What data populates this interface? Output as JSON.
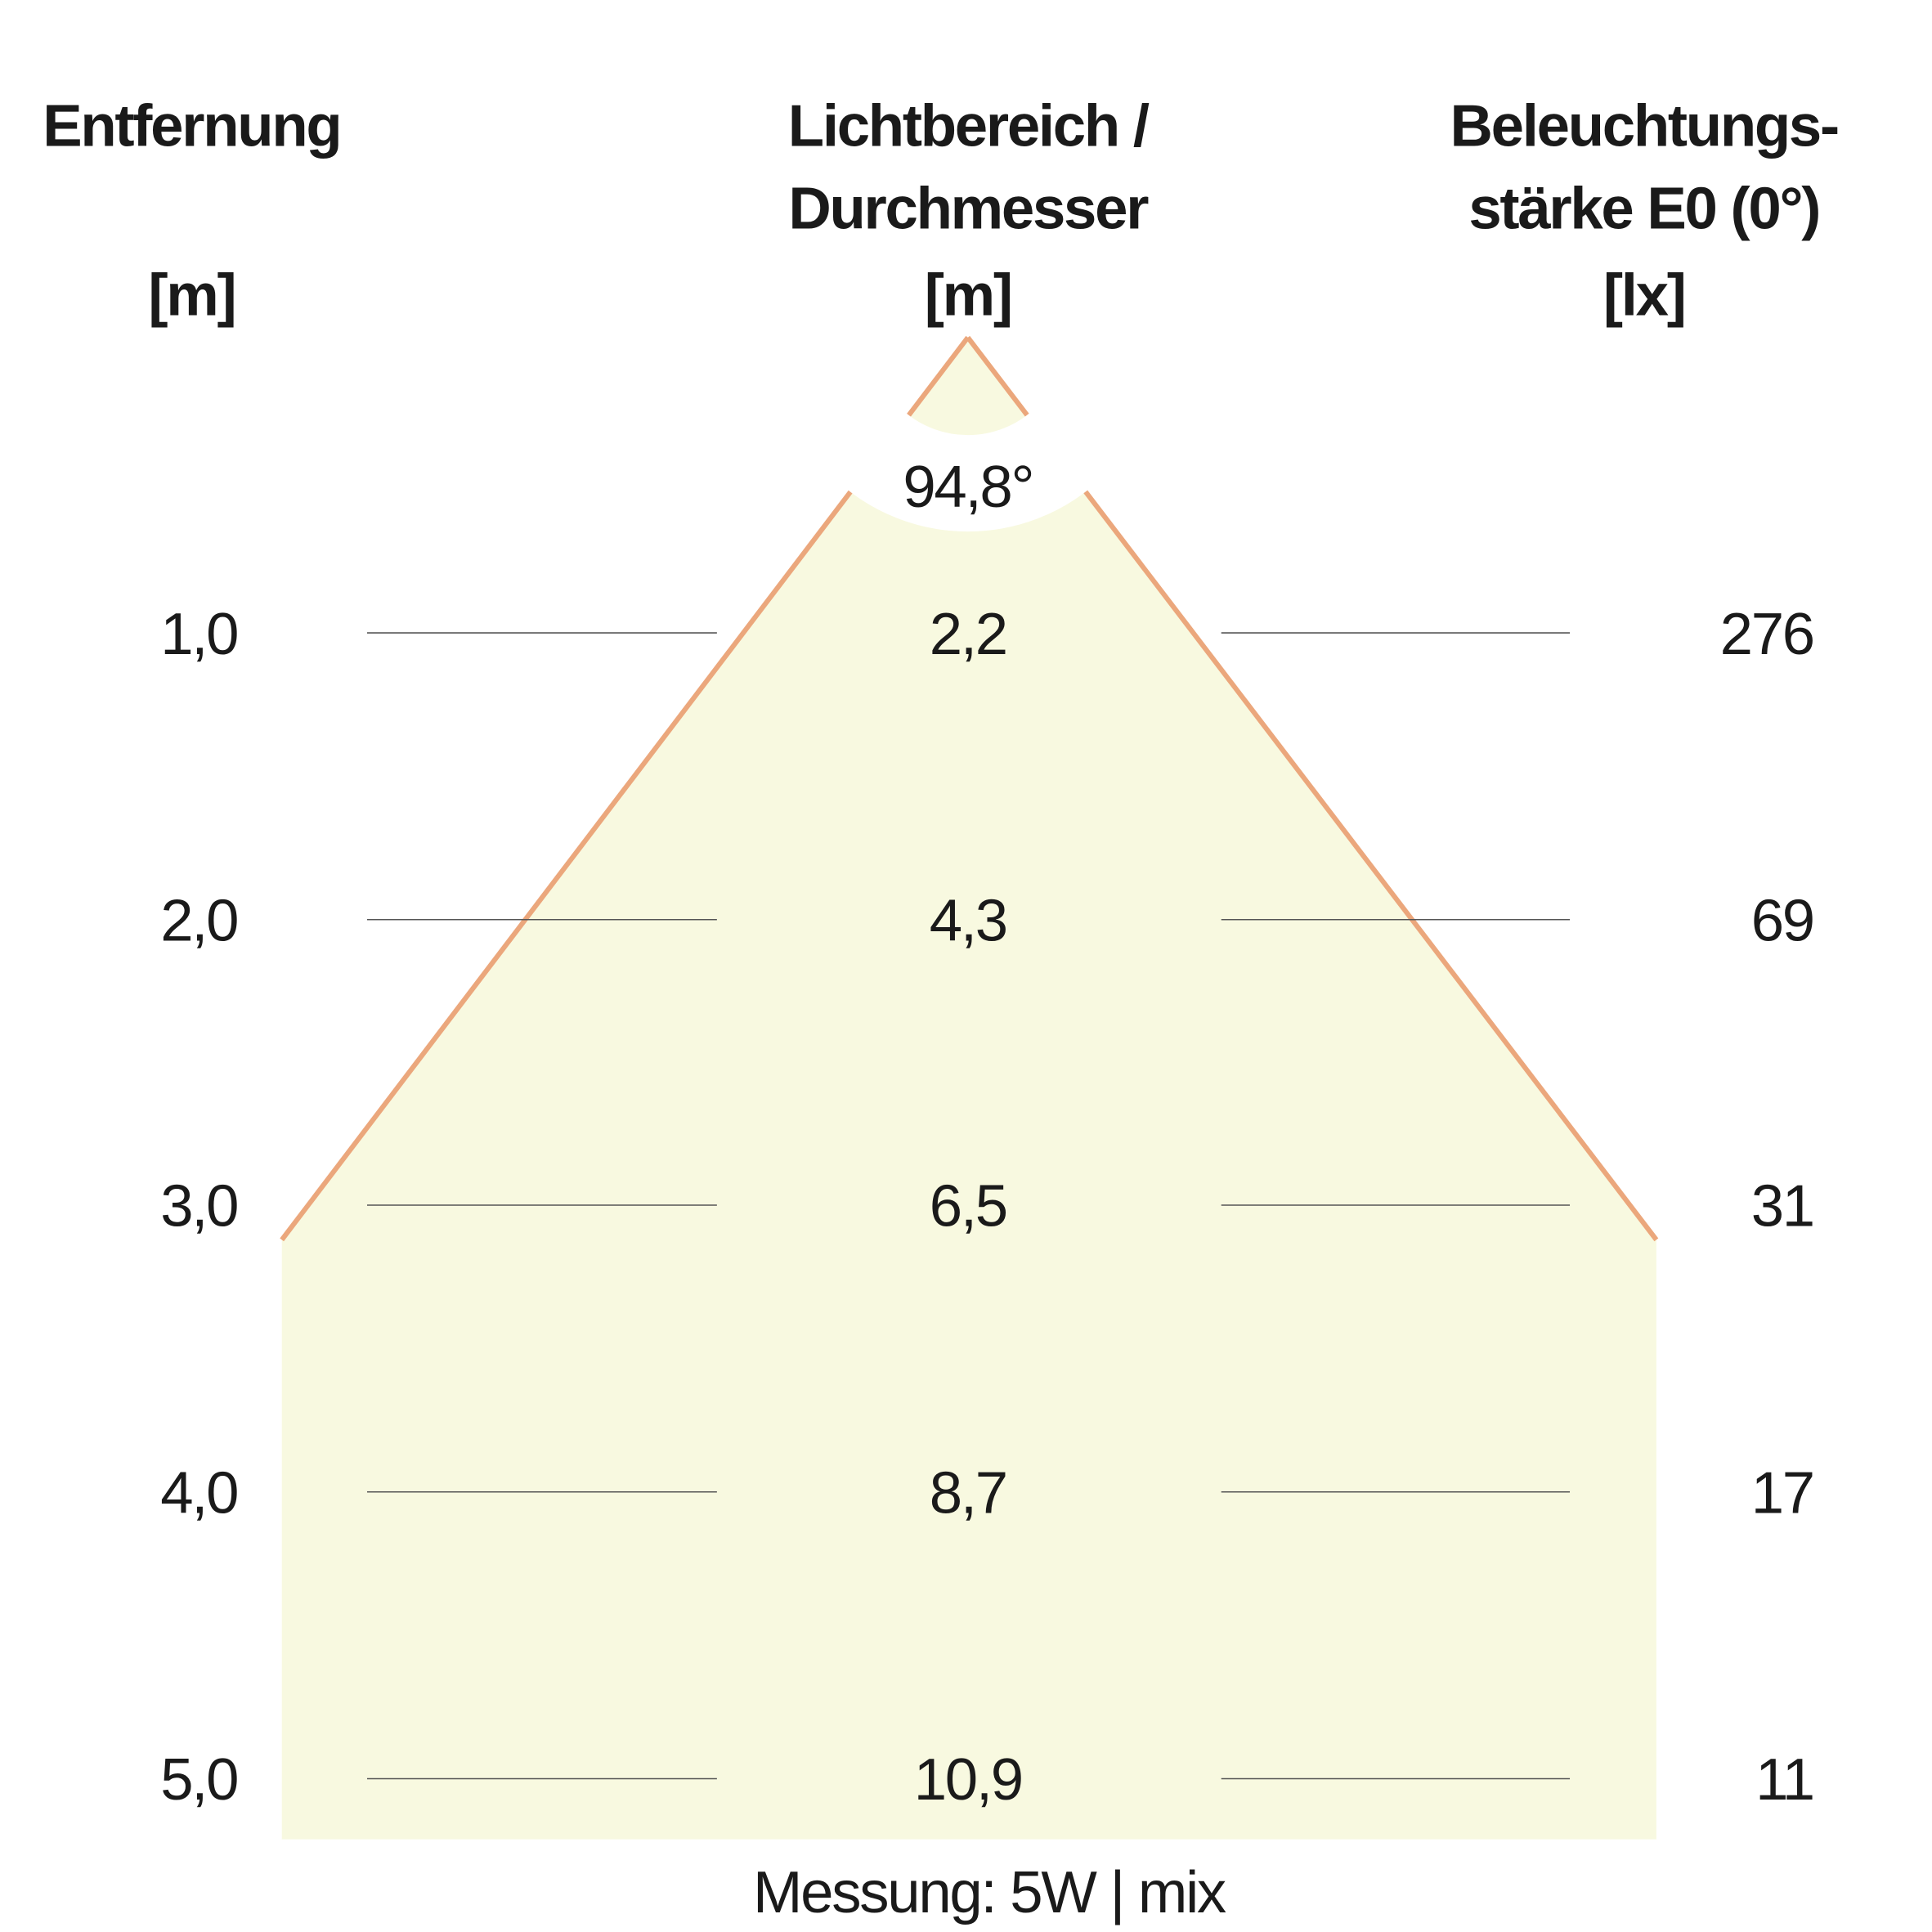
{
  "headers": {
    "distance": [
      "Entfernung",
      "[m]"
    ],
    "diameter": [
      "Lichtbereich /",
      "Durchmesser",
      "[m]"
    ],
    "illuminance": [
      "Beleuchtungs-",
      "stärke E0 (0°)",
      "[lx]"
    ]
  },
  "beam_angle": "94,8°",
  "rows": [
    {
      "distance": "1,0",
      "diameter": "2,2",
      "lux": "276"
    },
    {
      "distance": "2,0",
      "diameter": "4,3",
      "lux": "69"
    },
    {
      "distance": "3,0",
      "diameter": "6,5",
      "lux": "31"
    },
    {
      "distance": "4,0",
      "diameter": "8,7",
      "lux": "17"
    },
    {
      "distance": "5,0",
      "diameter": "10,9",
      "lux": "11"
    }
  ],
  "footer": "Messung: 5W | mix",
  "colors": {
    "cone_fill": "#f8f9e0",
    "cone_edge": "#eba77c",
    "divider": "#555555"
  }
}
